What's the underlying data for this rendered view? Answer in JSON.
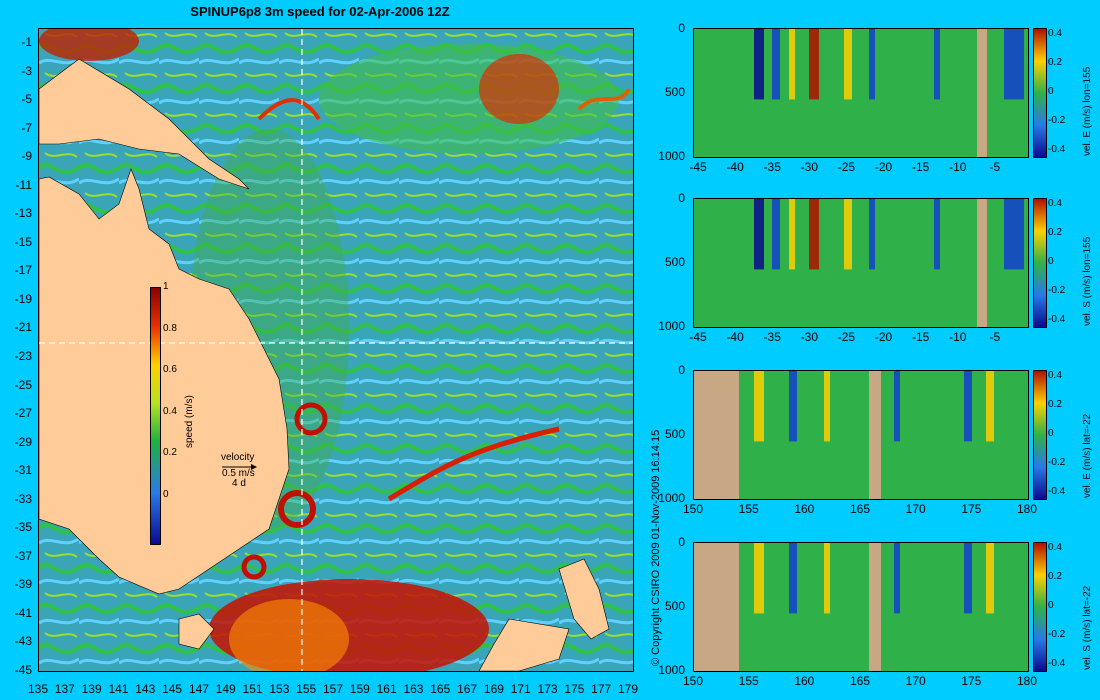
{
  "map": {
    "title": "SPINUP6p8 3m speed for 02-Apr-2006 12Z",
    "lat_ticks": [
      "-1",
      "-3",
      "-5",
      "-7",
      "-9",
      "-11",
      "-13",
      "-15",
      "-17",
      "-19",
      "-21",
      "-23",
      "-25",
      "-27",
      "-29",
      "-31",
      "-33",
      "-35",
      "-37",
      "-39",
      "-41",
      "-43",
      "-45"
    ],
    "lon_ticks": [
      "135",
      "137",
      "139",
      "141",
      "143",
      "145",
      "147",
      "149",
      "151",
      "153",
      "155",
      "157",
      "159",
      "161",
      "163",
      "165",
      "167",
      "169",
      "171",
      "173",
      "175",
      "177",
      "179"
    ],
    "colorbar": {
      "label": "speed (m/s)",
      "ticks": [
        "1",
        "0.8",
        "0.6",
        "0.4",
        "0.2",
        "0"
      ]
    },
    "velocity_legend": {
      "title": "velocity",
      "speed": "0.5 m/s",
      "duration": "4 d"
    },
    "copyright": "© Copyright CSIRO 2009   01-Nov-2009 16:14:15",
    "colors": {
      "land": "#ffcc99",
      "ocean_mid": "#2ea89a",
      "eddy_hot": "#b01000",
      "crosshair": "#ffffff"
    }
  },
  "panels": [
    {
      "label": "vel. E (m/s) lon=155",
      "x_ticks": [
        "-45",
        "-40",
        "-35",
        "-30",
        "-25",
        "-20",
        "-15",
        "-10",
        "-5"
      ],
      "y_ticks": [
        "0",
        "500",
        "1000"
      ],
      "cbar_ticks": [
        "0.4",
        "0.2",
        "0",
        "-0.2",
        "-0.4"
      ]
    },
    {
      "label": "vel. S (m/s) lon=155",
      "x_ticks": [
        "-45",
        "-40",
        "-35",
        "-30",
        "-25",
        "-20",
        "-15",
        "-10",
        "-5"
      ],
      "y_ticks": [
        "0",
        "500",
        "1000"
      ],
      "cbar_ticks": [
        "0.4",
        "0.2",
        "0",
        "-0.2",
        "-0.4"
      ]
    },
    {
      "label": "vel. E (m/s) lat=-22",
      "x_ticks": [
        "150",
        "155",
        "160",
        "165",
        "170",
        "175",
        "180"
      ],
      "y_ticks": [
        "0",
        "500",
        "1000"
      ],
      "cbar_ticks": [
        "0.4",
        "0.2",
        "0",
        "-0.2",
        "-0.4"
      ]
    },
    {
      "label": "vel. S (m/s) lat=-22",
      "x_ticks": [
        "150",
        "155",
        "160",
        "165",
        "170",
        "175",
        "180"
      ],
      "y_ticks": [
        "0",
        "500",
        "1000"
      ],
      "cbar_ticks": [
        "0.4",
        "0.2",
        "0",
        "-0.2",
        "-0.4"
      ]
    }
  ]
}
